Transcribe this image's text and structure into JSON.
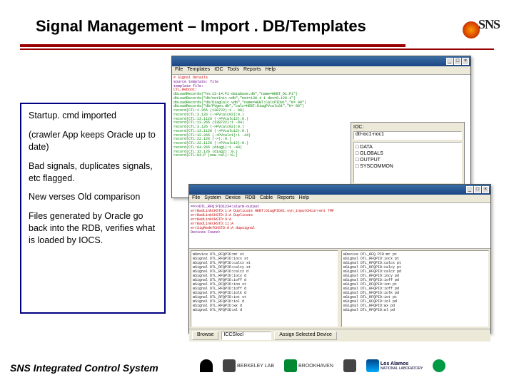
{
  "title": "Signal Management – Import . DB/Templates",
  "sns_logo": "SNS",
  "left": {
    "p1": "Startup. cmd imported",
    "p2": "(crawler App keeps Oracle up to date)",
    "p3": "Bad signals, duplicates signals, etc flagged.",
    "p4": "New verses Old comparison",
    "p5": "Files generated by Oracle go back into the RDB, verifies what is loaded by IOCS."
  },
  "footer": "SNS Integrated Control System",
  "logos": {
    "argonne": "Argonne",
    "berkeley": "BERKELEY LAB",
    "brookhaven": "BROOKHAVEN",
    "jlab": "Jefferson Lab",
    "losalamos": "Los Alamos",
    "losalamos2": "NATIONAL LABORATORY",
    "ornl": "ornl"
  },
  "win1": {
    "menu": [
      "File",
      "Templates",
      "IOC",
      "Tools",
      "Reports",
      "Help"
    ],
    "lines": [
      "# Signal Details",
      "source template: file",
      "template file:",
      "CTL_Reboot:",
      "dbLoadRecords(\"hn:13-14:P1-database.db\",\"name=HEBT_D1:P1\")",
      "dbLoadRecords(\"db/netInit.vdb\",\"net=138.4 1 dev=0.120.1\")",
      "dbLoadRecords(\"db/DiagCalc.vdb\",\"name=HEBT:CalcPID01\",\"K= 90\")",
      "dbLoadRecords(\"db/PVgen.db\",\"calc=HEBT:DiagPVcalc01\",\"K= 90\")",
      "record(CTL:1.265 (138722):1 - 00)",
      "record(CTL:3.126 (->PVcalc02):0.)",
      "record(CTL:13.1126 (->PVcalc12):0.)",
      "record(CTL:13.265 (138722):1 -84)",
      "record(CTL:3.126 (->PVcalc02):0.)",
      "record(CTL:13.1126 (->PVcalc12):0.)",
      "record(CTL:32.265 (->PVcalc1):1 -44)",
      "record(CTL:22.126 (->)::0.)",
      "record(CTL:22.1126 (->PVcalc12):0.)",
      "record(CTL:84.265 (diag1):1 -44)",
      "record(CTL:32.126 (diag2)::0.)",
      "record(CTL:84.P (new cal)::0.)"
    ],
    "filter": {
      "label": "IOC:",
      "value": "dtl-ioc1-noc1",
      "items": [
        "□ DATA",
        "□ GLOBALS",
        "□ OUTPUT",
        "□ SYSCOMMON"
      ]
    }
  },
  "win2": {
    "menu": [
      "File",
      "System",
      "Device",
      "RDB",
      "Cable",
      "Reports",
      "Help"
    ],
    "top_red": [
      "==>>DTL_RFQ:PID1234:alarm-output",
      "errBadLinkCHSTD:1:A Duplicate HEBT:DiagPID01:syn_inputCHcurrent TMF",
      "errBadLinkCHSTD:3:A Duplicate",
      "errBadLinkCHSTD:9:A",
      "errBadLinkCHSTD:11:A",
      "errSigRedefCHSTD:0:A dupsignal"
    ],
    "top_purp": "Devices Found:",
    "left_pane": [
      "⊟Device DTL_RFQPID:mr st",
      "  ⊟Signal DTL_RFQPID:iocx st",
      "  ⊟Signal DTL_RFQPID:calcx st",
      "  ⊟Signal DTL_RFQPID:calcy st",
      "  ⊟Signal DTL_RFQPID:calcz d",
      "  ⊟Signal DTL_RFQPID:iocy d",
      "  ⊟Signal DTL_RFQPID:ioff d",
      "  ⊟Signal DTL_RFQPID:ion st",
      "  ⊟Signal DTL_RFQPID:ioff d",
      "  ⊟Signal DTL_RFQPID:iolk d",
      "  ⊟Signal DTL_RFQPID:iot st",
      "  ⊟Signal DTL_RFQPID:iol d",
      "  ⊟Signal DTL_RFQPID:wx d",
      "  ⊟Signal DTL_RFQPID:wl d"
    ],
    "right_pane": [
      "⊟Device DTL_RFQ PID:mr pt",
      "  ⊟Signal DTL_RFQPID:iocx pt",
      "  ⊟Signal DTL_RFQPID:calcx pt",
      "  ⊟Signal DTL_RFQPID:calcy pt",
      "  ⊟Signal DTL_RFQPID:calcz pd",
      "  ⊟Signal DTL_RFQPID:iocy pd",
      "  ⊟Signal DTL_RFQPID:ioff pd",
      "  ⊟Signal DTL_RFQPID:ion pt",
      "  ⊟Signal DTL_RFQPID:ioff pd",
      "  ⊟Signal DTL_RFQPID:iolk pd",
      "  ⊟Signal DTL_RFQPID:iot pt",
      "  ⊟Signal DTL_RFQPID:iol pd",
      "  ⊟Signal DTL_RFQPID:wx pd",
      "  ⊟Signal DTL_RFQPID:wl pd"
    ],
    "bottom": {
      "btn1": "Browse",
      "fld1": "ICCSIocl",
      "btn2": "Assign Selected Device"
    }
  }
}
